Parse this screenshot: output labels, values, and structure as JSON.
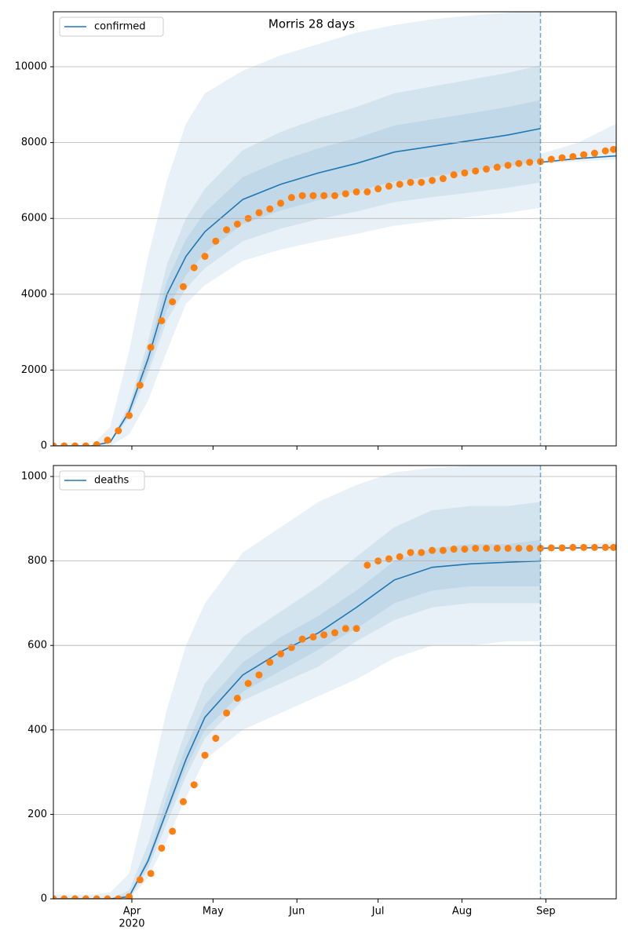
{
  "chart_data": [
    {
      "type": "line",
      "title": "Morris 28 days",
      "xlim": [
        "2020-03-03",
        "2020-09-27"
      ],
      "ylim": [
        0,
        11450
      ],
      "yticks": [
        0,
        2000,
        4000,
        6000,
        8000,
        10000
      ],
      "grid": true,
      "legend": "upper left",
      "vline": "2020-08-30",
      "x": [
        "2020-03-03",
        "2020-03-17",
        "2020-03-24",
        "2020-03-31",
        "2020-04-07",
        "2020-04-14",
        "2020-04-21",
        "2020-04-28",
        "2020-05-12",
        "2020-05-26",
        "2020-06-09",
        "2020-06-23",
        "2020-07-07",
        "2020-07-21",
        "2020-08-04",
        "2020-08-18",
        "2020-08-30"
      ],
      "series": [
        {
          "name": "confirmed",
          "color": "#1f77b4",
          "values": [
            0,
            0,
            100,
            900,
            2300,
            4000,
            5000,
            5650,
            6500,
            6900,
            7200,
            7450,
            7750,
            7900,
            8050,
            8200,
            8370
          ]
        }
      ],
      "band_color": "#1f77b4",
      "bands": [
        {
          "lower": [
            0,
            0,
            0,
            300,
            1200,
            2500,
            3750,
            4240,
            4880,
            5180,
            5400,
            5590,
            5810,
            5930,
            6040,
            6150,
            6280
          ],
          "upper": [
            0,
            0,
            500,
            2500,
            5000,
            7000,
            8500,
            9300,
            9900,
            10300,
            10600,
            10900,
            11100,
            11250,
            11350,
            11430,
            11470
          ]
        },
        {
          "lower": [
            0,
            0,
            80,
            750,
            1910,
            3320,
            4150,
            4690,
            5400,
            5730,
            5980,
            6180,
            6430,
            6560,
            6680,
            6810,
            6950
          ],
          "upper": [
            0,
            0,
            120,
            1080,
            2760,
            4800,
            6000,
            6780,
            7800,
            8280,
            8640,
            8940,
            9300,
            9480,
            9660,
            9840,
            10040
          ]
        },
        {
          "lower": [
            0,
            0,
            90,
            810,
            2070,
            3600,
            4500,
            5090,
            5850,
            6210,
            6480,
            6710,
            6980,
            7110,
            7250,
            7380,
            7530
          ],
          "upper": [
            0,
            0,
            110,
            980,
            2510,
            4360,
            5450,
            6160,
            7090,
            7520,
            7850,
            8120,
            8450,
            8610,
            8770,
            8940,
            9120
          ]
        }
      ],
      "model_after": {
        "x": [
          "2020-08-30",
          "2020-09-13",
          "2020-09-27"
        ],
        "values": [
          7480,
          7580,
          7650
        ],
        "lower": [
          7450,
          7500,
          7560
        ],
        "upper": [
          7700,
          8000,
          8500
        ]
      },
      "observed": {
        "color": "#ff7f0e",
        "x": [
          "2020-03-03",
          "2020-03-07",
          "2020-03-11",
          "2020-03-15",
          "2020-03-19",
          "2020-03-23",
          "2020-03-27",
          "2020-03-31",
          "2020-04-04",
          "2020-04-08",
          "2020-04-12",
          "2020-04-16",
          "2020-04-20",
          "2020-04-24",
          "2020-04-28",
          "2020-05-02",
          "2020-05-06",
          "2020-05-10",
          "2020-05-14",
          "2020-05-18",
          "2020-05-22",
          "2020-05-26",
          "2020-05-30",
          "2020-06-03",
          "2020-06-07",
          "2020-06-11",
          "2020-06-15",
          "2020-06-19",
          "2020-06-23",
          "2020-06-27",
          "2020-07-01",
          "2020-07-05",
          "2020-07-09",
          "2020-07-13",
          "2020-07-17",
          "2020-07-21",
          "2020-07-25",
          "2020-07-29",
          "2020-08-02",
          "2020-08-06",
          "2020-08-10",
          "2020-08-14",
          "2020-08-18",
          "2020-08-22",
          "2020-08-26",
          "2020-08-30",
          "2020-09-03",
          "2020-09-07",
          "2020-09-11",
          "2020-09-15",
          "2020-09-19",
          "2020-09-23",
          "2020-09-26"
        ],
        "values": [
          0,
          0,
          0,
          0,
          30,
          150,
          400,
          800,
          1600,
          2600,
          3300,
          3800,
          4200,
          4700,
          5000,
          5400,
          5700,
          5850,
          6000,
          6150,
          6250,
          6400,
          6550,
          6600,
          6600,
          6600,
          6600,
          6650,
          6700,
          6700,
          6780,
          6850,
          6900,
          6950,
          6950,
          7000,
          7050,
          7150,
          7200,
          7250,
          7300,
          7350,
          7400,
          7450,
          7480,
          7500,
          7560,
          7600,
          7630,
          7680,
          7720,
          7780,
          7820
        ]
      }
    },
    {
      "type": "line",
      "xlim": [
        "2020-03-03",
        "2020-09-27"
      ],
      "ylim": [
        0,
        1026
      ],
      "yticks": [
        0,
        200,
        400,
        600,
        800,
        1000
      ],
      "grid": true,
      "legend": "upper left",
      "vline": "2020-08-30",
      "xticks": [
        {
          "value": "2020-04-01",
          "label": "Apr"
        },
        {
          "value": "2020-05-01",
          "label": "May"
        },
        {
          "value": "2020-06-01",
          "label": "Jun"
        },
        {
          "value": "2020-07-01",
          "label": "Jul"
        },
        {
          "value": "2020-08-01",
          "label": "Aug"
        },
        {
          "value": "2020-09-01",
          "label": "Sep"
        }
      ],
      "year_label": "2020",
      "x": [
        "2020-03-03",
        "2020-03-17",
        "2020-03-24",
        "2020-03-31",
        "2020-04-07",
        "2020-04-14",
        "2020-04-21",
        "2020-04-28",
        "2020-05-12",
        "2020-05-26",
        "2020-06-09",
        "2020-06-23",
        "2020-07-07",
        "2020-07-21",
        "2020-08-04",
        "2020-08-18",
        "2020-08-30"
      ],
      "series": [
        {
          "name": "deaths",
          "color": "#1f77b4",
          "values": [
            0,
            0,
            0,
            5,
            90,
            210,
            330,
            430,
            530,
            585,
            630,
            690,
            755,
            785,
            793,
            797,
            800
          ]
        }
      ],
      "band_color": "#1f77b4",
      "bands": [
        {
          "lower": [
            0,
            0,
            0,
            0,
            50,
            140,
            240,
            330,
            400,
            440,
            480,
            520,
            570,
            600,
            600,
            610,
            610
          ],
          "upper": [
            10,
            10,
            15,
            60,
            250,
            450,
            600,
            700,
            820,
            880,
            940,
            980,
            1010,
            1020,
            1025,
            1030,
            1035
          ]
        },
        {
          "lower": [
            0,
            0,
            0,
            0,
            70,
            180,
            290,
            380,
            470,
            510,
            550,
            610,
            660,
            690,
            700,
            700,
            700
          ],
          "upper": [
            0,
            0,
            0,
            20,
            130,
            270,
            400,
            510,
            620,
            680,
            740,
            810,
            880,
            920,
            930,
            930,
            940
          ]
        },
        {
          "lower": [
            0,
            0,
            0,
            5,
            80,
            200,
            310,
            400,
            490,
            540,
            590,
            640,
            700,
            730,
            740,
            740,
            740
          ],
          "upper": [
            0,
            0,
            0,
            10,
            100,
            240,
            360,
            460,
            560,
            620,
            670,
            730,
            800,
            830,
            840,
            840,
            850
          ]
        }
      ],
      "model_after": {
        "x": [
          "2020-08-30",
          "2020-09-13",
          "2020-09-27"
        ],
        "values": [
          830,
          831,
          832
        ],
        "lower": [
          828,
          828,
          828
        ],
        "upper": [
          833,
          838,
          845
        ]
      },
      "observed": {
        "color": "#ff7f0e",
        "x": [
          "2020-03-03",
          "2020-03-07",
          "2020-03-11",
          "2020-03-15",
          "2020-03-19",
          "2020-03-23",
          "2020-03-27",
          "2020-03-31",
          "2020-04-04",
          "2020-04-08",
          "2020-04-12",
          "2020-04-16",
          "2020-04-20",
          "2020-04-24",
          "2020-04-28",
          "2020-05-02",
          "2020-05-06",
          "2020-05-10",
          "2020-05-14",
          "2020-05-18",
          "2020-05-22",
          "2020-05-26",
          "2020-05-30",
          "2020-06-03",
          "2020-06-07",
          "2020-06-11",
          "2020-06-15",
          "2020-06-19",
          "2020-06-23",
          "2020-06-27",
          "2020-07-01",
          "2020-07-05",
          "2020-07-09",
          "2020-07-13",
          "2020-07-17",
          "2020-07-21",
          "2020-07-25",
          "2020-07-29",
          "2020-08-02",
          "2020-08-06",
          "2020-08-10",
          "2020-08-14",
          "2020-08-18",
          "2020-08-22",
          "2020-08-26",
          "2020-08-30",
          "2020-09-03",
          "2020-09-07",
          "2020-09-11",
          "2020-09-15",
          "2020-09-19",
          "2020-09-23",
          "2020-09-26"
        ],
        "values": [
          0,
          0,
          0,
          0,
          0,
          0,
          0,
          5,
          45,
          60,
          120,
          160,
          230,
          270,
          340,
          380,
          440,
          475,
          510,
          530,
          560,
          580,
          595,
          615,
          620,
          625,
          630,
          640,
          640,
          790,
          800,
          805,
          810,
          820,
          820,
          825,
          825,
          828,
          828,
          830,
          830,
          830,
          830,
          830,
          830,
          830,
          831,
          831,
          832,
          832,
          832,
          832,
          832
        ]
      }
    }
  ]
}
